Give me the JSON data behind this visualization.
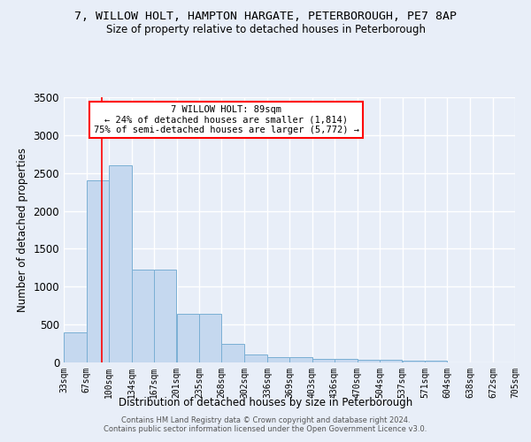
{
  "title": "7, WILLOW HOLT, HAMPTON HARGATE, PETERBOROUGH, PE7 8AP",
  "subtitle": "Size of property relative to detached houses in Peterborough",
  "xlabel": "Distribution of detached houses by size in Peterborough",
  "ylabel": "Number of detached properties",
  "bin_labels": [
    "33sqm",
    "67sqm",
    "100sqm",
    "134sqm",
    "167sqm",
    "201sqm",
    "235sqm",
    "268sqm",
    "302sqm",
    "336sqm",
    "369sqm",
    "403sqm",
    "436sqm",
    "470sqm",
    "504sqm",
    "537sqm",
    "571sqm",
    "604sqm",
    "638sqm",
    "672sqm",
    "705sqm"
  ],
  "bin_edges": [
    33,
    67,
    100,
    134,
    167,
    201,
    235,
    268,
    302,
    336,
    369,
    403,
    436,
    470,
    504,
    537,
    571,
    604,
    638,
    672,
    705
  ],
  "bar_heights": [
    400,
    2400,
    2600,
    1230,
    1230,
    640,
    640,
    250,
    100,
    65,
    65,
    50,
    50,
    35,
    35,
    20,
    20,
    5,
    5,
    2,
    0
  ],
  "bar_color": "#c5d8ef",
  "bar_edge_color": "#7aafd4",
  "bg_color": "#e8eef8",
  "grid_color": "#ffffff",
  "red_line_x": 89,
  "ylim": [
    0,
    3500
  ],
  "yticks": [
    0,
    500,
    1000,
    1500,
    2000,
    2500,
    3000,
    3500
  ],
  "annotation_line1": "7 WILLOW HOLT: 89sqm",
  "annotation_line2": "← 24% of detached houses are smaller (1,814)",
  "annotation_line3": "75% of semi-detached houses are larger (5,772) →",
  "footer": "Contains HM Land Registry data © Crown copyright and database right 2024.\nContains public sector information licensed under the Open Government Licence v3.0."
}
